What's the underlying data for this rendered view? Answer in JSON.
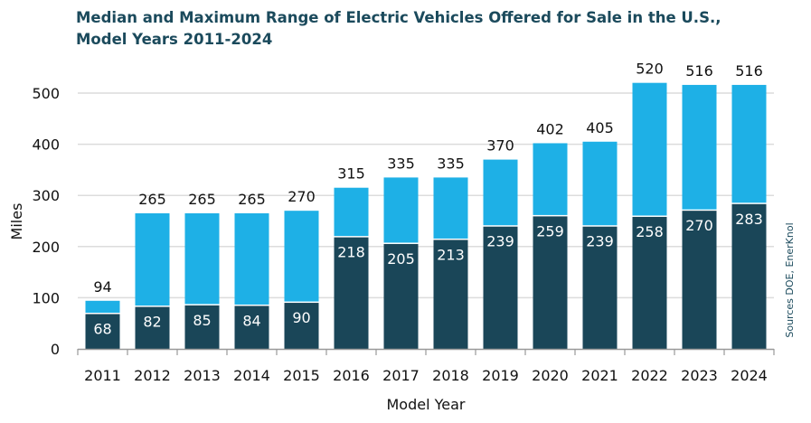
{
  "chart_data": {
    "type": "bar",
    "title_line1": "Median and Maximum Range of Electric Vehicles Offered for Sale in the U.S.,",
    "title_line2": "Model Years 2011-2024",
    "xlabel": "Model Year",
    "ylabel": "Miles",
    "ylim": [
      0,
      500
    ],
    "yticks": [
      "0",
      "100",
      "200",
      "300",
      "400",
      "500"
    ],
    "grid": true,
    "categories": [
      "2011",
      "2012",
      "2013",
      "2014",
      "2015",
      "2016",
      "2017",
      "2018",
      "2019",
      "2020",
      "2021",
      "2022",
      "2023",
      "2024"
    ],
    "series": [
      {
        "key": "maximum",
        "color": "#1eb0e6",
        "values": [
          94,
          265,
          265,
          265,
          270,
          315,
          335,
          335,
          370,
          402,
          405,
          520,
          516,
          516
        ]
      },
      {
        "key": "median",
        "color": "#1a4658",
        "values": [
          68,
          82,
          85,
          84,
          90,
          218,
          205,
          213,
          239,
          259,
          239,
          258,
          270,
          283
        ]
      }
    ],
    "source": "Sources DOE, EnerKnol"
  }
}
